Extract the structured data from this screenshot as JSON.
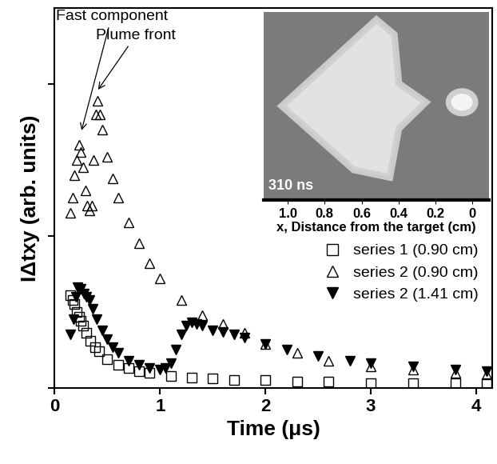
{
  "chart_data": [
    {
      "type": "scatter",
      "x_label": "Time (μs)",
      "y_label": "IΔtxy (arb. units)",
      "xlim": [
        0,
        4.15
      ],
      "xticks": [
        0,
        1,
        2,
        3,
        4
      ],
      "ylim": [
        0,
        2.5
      ],
      "yticks": [
        0,
        1,
        2
      ],
      "tick_labels": "x",
      "legend": "lower right",
      "annotations": [
        {
          "text": "Fast component",
          "x": 0.25,
          "y": 1.68
        },
        {
          "text": "Plume front",
          "x": 0.4,
          "y": 1.95
        }
      ],
      "series": [
        {
          "name": "series 1 (0.90 cm)",
          "color": "#000000",
          "marker": "open_square",
          "x": [
            0.15,
            0.17,
            0.19,
            0.21,
            0.23,
            0.25,
            0.27,
            0.3,
            0.34,
            0.38,
            0.42,
            0.5,
            0.6,
            0.7,
            0.8,
            0.9,
            1.1,
            1.3,
            1.5,
            1.7,
            2.0,
            2.3,
            2.6,
            3.0,
            3.4,
            3.8,
            4.1
          ],
          "values": [
            0.61,
            0.58,
            0.55,
            0.5,
            0.47,
            0.44,
            0.41,
            0.36,
            0.31,
            0.27,
            0.24,
            0.19,
            0.15,
            0.13,
            0.11,
            0.1,
            0.08,
            0.07,
            0.06,
            0.05,
            0.05,
            0.04,
            0.04,
            0.03,
            0.03,
            0.03,
            0.03
          ]
        },
        {
          "name": "series 2 (0.90 cm)",
          "color": "#000000",
          "marker": "open_triangle_up",
          "x": [
            0.15,
            0.17,
            0.19,
            0.21,
            0.23,
            0.25,
            0.27,
            0.29,
            0.31,
            0.33,
            0.35,
            0.37,
            0.39,
            0.41,
            0.43,
            0.45,
            0.5,
            0.55,
            0.6,
            0.7,
            0.8,
            0.9,
            1.0,
            1.2,
            1.4,
            1.6,
            1.8,
            2.0,
            2.3,
            2.6,
            3.0,
            3.4,
            3.8,
            4.1
          ],
          "values": [
            1.15,
            1.25,
            1.4,
            1.5,
            1.6,
            1.55,
            1.45,
            1.3,
            1.2,
            1.17,
            1.2,
            1.5,
            1.8,
            1.89,
            1.8,
            1.7,
            1.52,
            1.38,
            1.25,
            1.09,
            0.95,
            0.82,
            0.72,
            0.58,
            0.48,
            0.42,
            0.36,
            0.29,
            0.23,
            0.18,
            0.14,
            0.12,
            0.1,
            0.09
          ]
        },
        {
          "name": "series 2 (1.41 cm)",
          "color": "#000000",
          "marker": "filled_triangle_down",
          "x": [
            0.15,
            0.18,
            0.2,
            0.22,
            0.25,
            0.28,
            0.3,
            0.33,
            0.36,
            0.4,
            0.45,
            0.5,
            0.55,
            0.6,
            0.7,
            0.8,
            0.9,
            1.0,
            1.05,
            1.1,
            1.15,
            1.2,
            1.25,
            1.3,
            1.35,
            1.4,
            1.5,
            1.6,
            1.7,
            1.8,
            2.0,
            2.2,
            2.5,
            2.8,
            3.0,
            3.4,
            3.8,
            4.1
          ],
          "values": [
            0.35,
            0.45,
            0.6,
            0.66,
            0.65,
            0.62,
            0.6,
            0.58,
            0.52,
            0.45,
            0.38,
            0.32,
            0.27,
            0.23,
            0.18,
            0.15,
            0.13,
            0.12,
            0.13,
            0.16,
            0.25,
            0.35,
            0.41,
            0.43,
            0.42,
            0.41,
            0.38,
            0.37,
            0.35,
            0.33,
            0.29,
            0.25,
            0.21,
            0.18,
            0.16,
            0.14,
            0.12,
            0.11
          ]
        }
      ]
    },
    {
      "type": "image",
      "annotations": [
        "310 ns"
      ],
      "x_label": "x, Distance from the target (cm)",
      "xlim": [
        1.13,
        -0.09
      ],
      "xticks": [
        1.0,
        0.8,
        0.6,
        0.4,
        0.2,
        0
      ],
      "tick_labels": "x"
    }
  ]
}
